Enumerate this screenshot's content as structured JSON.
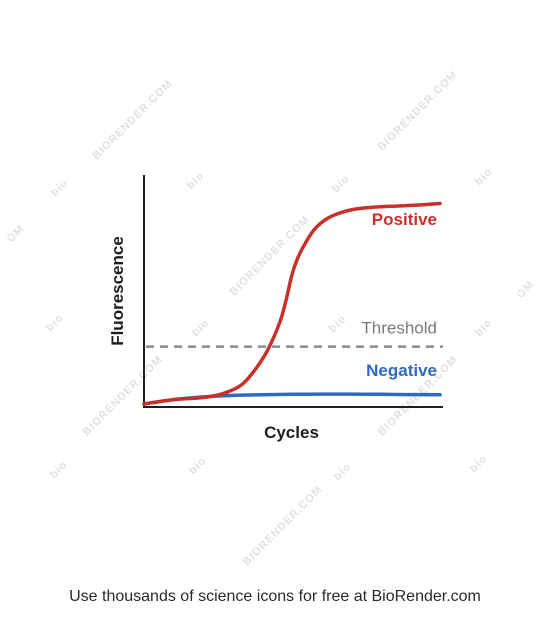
{
  "chart_data": {
    "type": "line",
    "xlabel": "Cycles",
    "ylabel": "Fluorescence",
    "xlim": [
      0,
      100
    ],
    "ylim": [
      0,
      100
    ],
    "grid": false,
    "threshold": {
      "label": "Threshold",
      "value": 28,
      "color": "#8c8c8c"
    },
    "series": [
      {
        "name": "Positive",
        "color": "#c9302c",
        "x": [
          0,
          10,
          20,
          27,
          33,
          38,
          42,
          46,
          48,
          50,
          52,
          55,
          58,
          62,
          66,
          70,
          75,
          80,
          85,
          90,
          95,
          100
        ],
        "y": [
          1,
          3,
          4,
          6,
          10,
          18,
          27,
          40,
          50,
          62,
          70,
          78,
          84,
          88.5,
          91,
          92.5,
          93.5,
          94,
          94.3,
          94.6,
          95,
          95.5
        ]
      },
      {
        "name": "Negative",
        "color": "#2f6bbd",
        "x": [
          0,
          10,
          20,
          30,
          40,
          50,
          60,
          70,
          80,
          90,
          100
        ],
        "y": [
          1,
          3,
          4.3,
          5,
          5.3,
          5.5,
          5.6,
          5.6,
          5.5,
          5.4,
          5.3
        ]
      }
    ]
  },
  "watermark": {
    "text": "BIORENDER.COM",
    "short": "bio",
    "partial": "OM"
  },
  "footer": {
    "text": "Use thousands of science icons for free at BioRender.com"
  }
}
